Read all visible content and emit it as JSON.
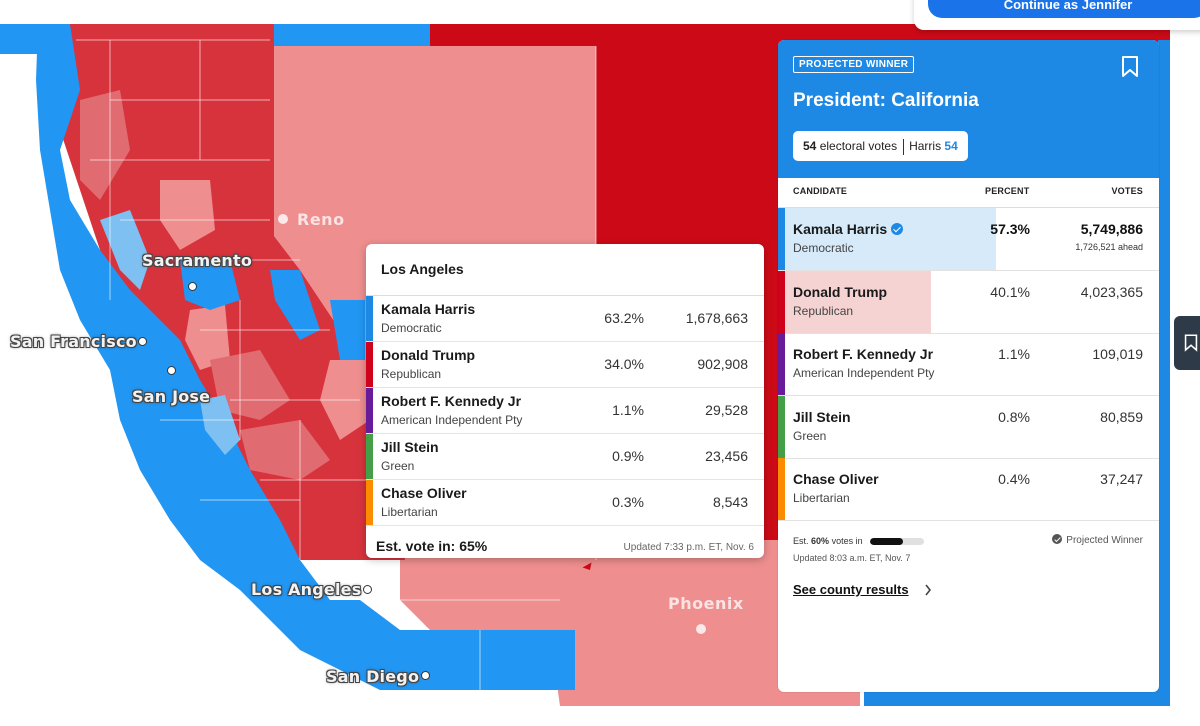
{
  "login": {
    "label": "Continue as Jennifer"
  },
  "map": {
    "cities": [
      {
        "name": "Sacramento"
      },
      {
        "name": "San Francisco"
      },
      {
        "name": "San Jose"
      },
      {
        "name": "Los Angeles"
      },
      {
        "name": "San Diego"
      }
    ],
    "other_cities": [
      {
        "name": "Reno"
      },
      {
        "name": "Phoenix"
      }
    ],
    "colors": {
      "dem": "#2196f3",
      "dem_light": "#7ec0f2",
      "rep": "#d7333d",
      "rep_dark": "#cc0a17",
      "rep_light": "#ee8e8e",
      "rep_mid": "#e06b70"
    }
  },
  "tooltip": {
    "county": "Los Angeles",
    "rows": [
      {
        "name": "Kamala Harris",
        "party": "Democratic",
        "percent": "63.2%",
        "votes": "1,678,663",
        "color": "#1e88e5"
      },
      {
        "name": "Donald Trump",
        "party": "Republican",
        "percent": "34.0%",
        "votes": "902,908",
        "color": "#d0021b"
      },
      {
        "name": "Robert F. Kennedy Jr",
        "party": "American Independent Pty",
        "percent": "1.1%",
        "votes": "29,528",
        "color": "#6a1b9a"
      },
      {
        "name": "Jill Stein",
        "party": "Green",
        "percent": "0.9%",
        "votes": "23,456",
        "color": "#43a047"
      },
      {
        "name": "Chase Oliver",
        "party": "Libertarian",
        "percent": "0.3%",
        "votes": "8,543",
        "color": "#fb8c00"
      }
    ],
    "est_vote": "Est. vote in: 65%",
    "updated": "Updated 7:33 p.m. ET, Nov. 6"
  },
  "panel": {
    "badge": "PROJECTED WINNER",
    "title": "President: California",
    "ev_count": "54",
    "ev_label": "electoral votes",
    "winner_name": "Harris",
    "winner_ev": "54",
    "columns": {
      "candidate": "CANDIDATE",
      "percent": "PERCENT",
      "votes": "VOTES"
    },
    "rows": [
      {
        "name": "Kamala Harris",
        "party": "Democratic",
        "percent": "57.3%",
        "percent_value": 57.3,
        "votes": "5,749,886",
        "ahead": "1,726,521 ahead",
        "color": "#1e88e5",
        "fill": "#d6eafa"
      },
      {
        "name": "Donald Trump",
        "party": "Republican",
        "percent": "40.1%",
        "percent_value": 40.1,
        "votes": "4,023,365",
        "color": "#d0021b",
        "fill": "#f6d3d3"
      },
      {
        "name": "Robert F. Kennedy Jr",
        "party": "American Independent Pty",
        "percent": "1.1%",
        "percent_value": 1.1,
        "votes": "109,019",
        "color": "#6a1b9a",
        "fill": "#ece3f1"
      },
      {
        "name": "Jill Stein",
        "party": "Green",
        "percent": "0.8%",
        "percent_value": 0.8,
        "votes": "80,859",
        "color": "#43a047",
        "fill": "#e4f2e4"
      },
      {
        "name": "Chase Oliver",
        "party": "Libertarian",
        "percent": "0.4%",
        "percent_value": 0.4,
        "votes": "37,247",
        "color": "#fb8c00",
        "fill": "#fdebd6"
      }
    ],
    "est_prefix": "Est.",
    "est_percent": "60%",
    "est_fraction": 0.6,
    "est_suffix": "votes in",
    "projected_winner": "Projected Winner",
    "updated": "Updated 8:03 a.m. ET, Nov. 7",
    "county_link": "See county results"
  }
}
